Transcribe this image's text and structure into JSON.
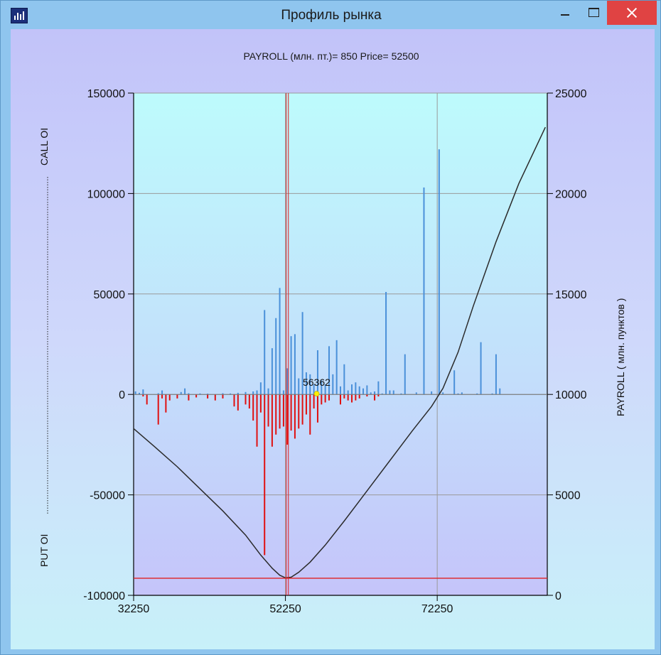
{
  "window": {
    "title": "Профиль рынка",
    "minimize_icon": "minimize-icon",
    "maximize_icon": "maximize-icon",
    "close_icon": "close-icon",
    "app_icon": "chart-app-icon"
  },
  "chart_header": "PAYROLL (млн. пт.)= 850  Price= 52500",
  "chart_data": {
    "type": "bar",
    "title": "PAYROLL (млн. пт.)= 850  Price= 52500",
    "xlabel": "",
    "ylabel_left_top": "CALL OI",
    "ylabel_left_bottom": "PUT OI",
    "ylabel_right": "PAYROLL  ( млн. пунктов )",
    "xlim": [
      32250,
      86750
    ],
    "ylim_left": [
      -100000,
      150000
    ],
    "ylim_right": [
      0,
      25000
    ],
    "x_ticks": [
      32250,
      52250,
      72250
    ],
    "y_left_ticks": [
      -100000,
      -50000,
      0,
      50000,
      100000,
      150000
    ],
    "y_right_ticks": [
      0,
      5000,
      10000,
      15000,
      20000,
      25000
    ],
    "grid": true,
    "price_line_x": 52500,
    "payroll_min_line": 850,
    "marker": {
      "label": "56362",
      "x": 56362,
      "y": 0
    },
    "colors": {
      "call": "#4a90d9",
      "put": "#e01010",
      "payroll": "#2b2b2b",
      "price": "#e02020",
      "grid": "#9a9a9a"
    },
    "series": [
      {
        "name": "CALL OI",
        "x": [
          32500,
          33000,
          33500,
          35500,
          36000,
          38500,
          39000,
          39500,
          41000,
          42000,
          44000,
          45000,
          46000,
          47000,
          48000,
          48500,
          49000,
          49500,
          50000,
          50500,
          51000,
          51500,
          52000,
          52500,
          53000,
          53500,
          54000,
          54500,
          55000,
          55500,
          56000,
          56500,
          57000,
          57500,
          58000,
          58500,
          59000,
          59500,
          60000,
          60500,
          61000,
          61500,
          62000,
          62500,
          63000,
          63500,
          64000,
          64500,
          65000,
          65500,
          66000,
          66500,
          67500,
          68000,
          69500,
          70500,
          71500,
          72500,
          73000,
          74500,
          75000,
          75500,
          77500,
          78000,
          79500,
          80000,
          80500
        ],
        "values": [
          1500,
          800,
          2500,
          600,
          2000,
          1200,
          3000,
          600,
          500,
          400,
          600,
          500,
          800,
          1200,
          1500,
          2000,
          6000,
          42000,
          3000,
          23000,
          38000,
          53000,
          2000,
          13000,
          29000,
          30000,
          8000,
          41000,
          11000,
          10000,
          5000,
          22000,
          7000,
          5000,
          24000,
          10000,
          27000,
          4000,
          15000,
          2000,
          5000,
          6000,
          4000,
          3000,
          4500,
          1000,
          1500,
          6500,
          500,
          51000,
          2000,
          2000,
          500,
          20000,
          1000,
          103000,
          1500,
          122000,
          1000,
          12000,
          500,
          1000,
          500,
          26000,
          500,
          20000,
          3000
        ]
      },
      {
        "name": "PUT OI",
        "x": [
          33500,
          34000,
          35500,
          36000,
          36500,
          37000,
          38000,
          39500,
          40500,
          42000,
          43000,
          44000,
          45500,
          46000,
          47000,
          47500,
          48000,
          48500,
          49000,
          49500,
          50000,
          50500,
          51000,
          51500,
          52000,
          52500,
          53000,
          53500,
          54000,
          54500,
          55000,
          55500,
          56000,
          56500,
          57000,
          57500,
          58000,
          59500,
          60000,
          60500,
          61000,
          61500,
          62000,
          63000,
          64000,
          64500
        ],
        "values": [
          -1000,
          -5000,
          -15000,
          -2000,
          -9000,
          -3000,
          -2000,
          -3000,
          -1500,
          -2000,
          -3000,
          -2000,
          -6000,
          -8000,
          -5000,
          -7000,
          -13000,
          -26000,
          -9000,
          -80000,
          -16000,
          -26000,
          -20000,
          -17000,
          -16000,
          -25000,
          -18000,
          -22000,
          -17000,
          -15000,
          -10000,
          -20000,
          -7000,
          -14000,
          -5000,
          -4000,
          -3000,
          -5000,
          -2000,
          -3000,
          -4000,
          -3000,
          -2000,
          -1000,
          -3000,
          -1000
        ]
      },
      {
        "name": "PAYROLL",
        "axis": "right",
        "x": [
          32250,
          35000,
          38000,
          41000,
          44000,
          47000,
          49000,
          50500,
          51500,
          52250,
          53000,
          54000,
          55500,
          57500,
          60000,
          63000,
          66000,
          69000,
          71500,
          73000,
          75000,
          77000,
          80000,
          83000,
          86500
        ],
        "values": [
          8300,
          7400,
          6400,
          5300,
          4200,
          3000,
          2000,
          1350,
          1000,
          870,
          900,
          1150,
          1650,
          2500,
          3700,
          5200,
          6700,
          8200,
          9400,
          10300,
          12100,
          14400,
          17600,
          20500,
          23300
        ]
      }
    ]
  }
}
